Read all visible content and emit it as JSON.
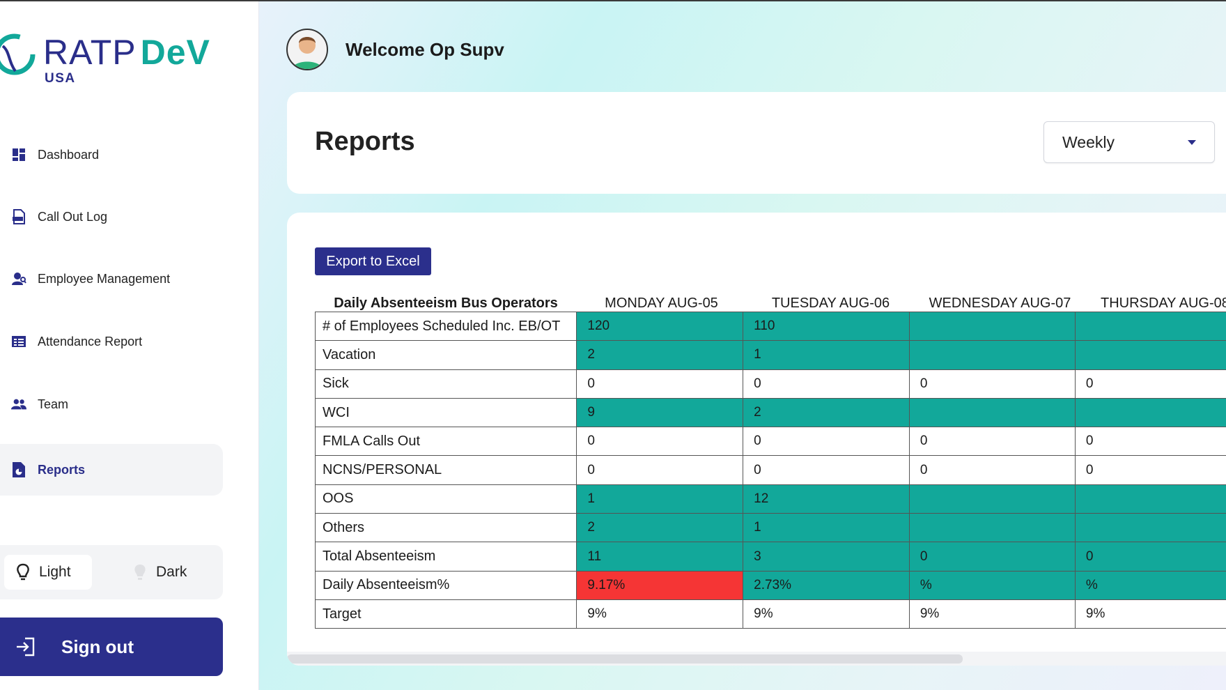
{
  "brand": {
    "name_part1": "RATP",
    "name_part2": "DeV",
    "sub": "USA"
  },
  "sidebar": {
    "items": [
      {
        "label": "Dashboard",
        "icon": "dashboard-icon"
      },
      {
        "label": "Call Out Log",
        "icon": "log-icon"
      },
      {
        "label": "Employee Management",
        "icon": "employee-icon"
      },
      {
        "label": "Attendance Report",
        "icon": "report-list-icon"
      },
      {
        "label": "Team",
        "icon": "team-icon"
      },
      {
        "label": "Reports",
        "icon": "document-chart-icon",
        "active": true
      }
    ],
    "theme": {
      "light_label": "Light",
      "dark_label": "Dark"
    },
    "signout_label": "Sign out"
  },
  "header": {
    "welcome": "Welcome Op Supv"
  },
  "reports": {
    "title": "Reports",
    "period": "Weekly",
    "export_label": "Export to Excel"
  },
  "table": {
    "corner": "Daily Absenteeism Bus Operators",
    "columns": [
      "MONDAY AUG-05",
      "TUESDAY AUG-06",
      "WEDNESDAY AUG-07",
      "THURSDAY AUG-08"
    ],
    "rows": [
      {
        "label": "# of Employees Scheduled Inc. EB/OT",
        "values": [
          "120",
          "110",
          "",
          ""
        ],
        "fills": [
          "teal",
          "teal",
          "teal",
          "teal"
        ]
      },
      {
        "label": "Vacation",
        "values": [
          "2",
          "1",
          "",
          ""
        ],
        "fills": [
          "teal",
          "teal",
          "teal",
          "teal"
        ]
      },
      {
        "label": "Sick",
        "values": [
          "0",
          "0",
          "0",
          "0"
        ],
        "fills": [
          "white",
          "white",
          "white",
          "white"
        ]
      },
      {
        "label": "WCI",
        "values": [
          "9",
          "2",
          "",
          ""
        ],
        "fills": [
          "teal",
          "teal",
          "teal",
          "teal"
        ]
      },
      {
        "label": "FMLA Calls Out",
        "values": [
          "0",
          "0",
          "0",
          "0"
        ],
        "fills": [
          "white",
          "white",
          "white",
          "white"
        ]
      },
      {
        "label": "NCNS/PERSONAL",
        "values": [
          "0",
          "0",
          "0",
          "0"
        ],
        "fills": [
          "white",
          "white",
          "white",
          "white"
        ]
      },
      {
        "label": "OOS",
        "values": [
          "1",
          "12",
          "",
          ""
        ],
        "fills": [
          "teal",
          "teal",
          "teal",
          "teal"
        ]
      },
      {
        "label": "Others",
        "values": [
          "2",
          "1",
          "",
          ""
        ],
        "fills": [
          "teal",
          "teal",
          "teal",
          "teal"
        ]
      },
      {
        "label": "Total Absenteeism",
        "values": [
          "11",
          "3",
          "0",
          "0"
        ],
        "fills": [
          "teal",
          "teal",
          "teal",
          "teal"
        ]
      },
      {
        "label": "Daily Absenteeism%",
        "values": [
          "9.17%",
          "2.73%",
          "%",
          "%"
        ],
        "fills": [
          "red",
          "teal",
          "teal",
          "teal"
        ]
      },
      {
        "label": "Target",
        "values": [
          "9%",
          "9%",
          "9%",
          "9%"
        ],
        "fills": [
          "white",
          "white",
          "white",
          "white"
        ]
      }
    ]
  },
  "colors": {
    "brand_navy": "#2b2f8c",
    "brand_teal": "#12a89a",
    "alert_red": "#f53535"
  }
}
